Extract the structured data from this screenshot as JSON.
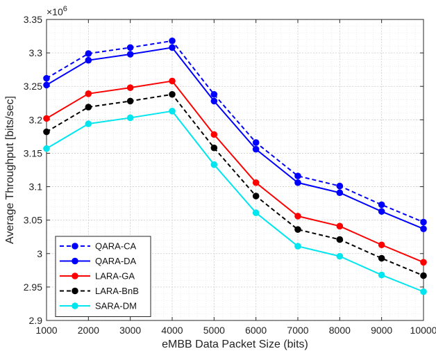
{
  "chart_data": {
    "type": "line",
    "xlabel": "eMBB Data Packet Size (bits)",
    "ylabel": "Average Throughput [bits/sec]",
    "y_multiplier_base": "×10",
    "y_multiplier_exponent": "6",
    "x": [
      1000,
      2000,
      3000,
      4000,
      5000,
      6000,
      7000,
      8000,
      9000,
      10000
    ],
    "x_tick_labels": [
      "1000",
      "2000",
      "3000",
      "4000",
      "5000",
      "6000",
      "7000",
      "8000",
      "9000",
      "10000"
    ],
    "xlim": [
      1000,
      10000
    ],
    "ylim": [
      2.9,
      3.35
    ],
    "y_ticks": [
      2.9,
      2.95,
      3.0,
      3.05,
      3.1,
      3.15,
      3.2,
      3.25,
      3.3,
      3.35
    ],
    "y_tick_labels": [
      "2.9",
      "2.95",
      "3",
      "3.05",
      "3.1",
      "3.15",
      "3.2",
      "3.25",
      "3.3",
      "3.35"
    ],
    "grid": true,
    "minor_grid": true,
    "legend_position": "bottom-left",
    "series": [
      {
        "name": "QARA-CA",
        "color": "#0000ff",
        "dashed": true,
        "values": [
          3.262,
          3.299,
          3.308,
          3.318,
          3.238,
          3.166,
          3.116,
          3.101,
          3.073,
          3.047
        ]
      },
      {
        "name": "QARA-DA",
        "color": "#0000ff",
        "dashed": false,
        "values": [
          3.252,
          3.289,
          3.298,
          3.308,
          3.228,
          3.156,
          3.106,
          3.091,
          3.063,
          3.037
        ]
      },
      {
        "name": "LARA-GA",
        "color": "#ff0000",
        "dashed": false,
        "values": [
          3.202,
          3.239,
          3.248,
          3.258,
          3.178,
          3.106,
          3.056,
          3.041,
          3.013,
          2.987
        ]
      },
      {
        "name": "LARA-BnB",
        "color": "#000000",
        "dashed": true,
        "values": [
          3.182,
          3.219,
          3.228,
          3.238,
          3.158,
          3.086,
          3.036,
          3.021,
          2.993,
          2.967
        ]
      },
      {
        "name": "SARA-DM",
        "color": "#00e5ee",
        "dashed": false,
        "values": [
          3.157,
          3.194,
          3.203,
          3.213,
          3.133,
          3.061,
          3.011,
          2.996,
          2.968,
          2.943
        ]
      }
    ]
  }
}
